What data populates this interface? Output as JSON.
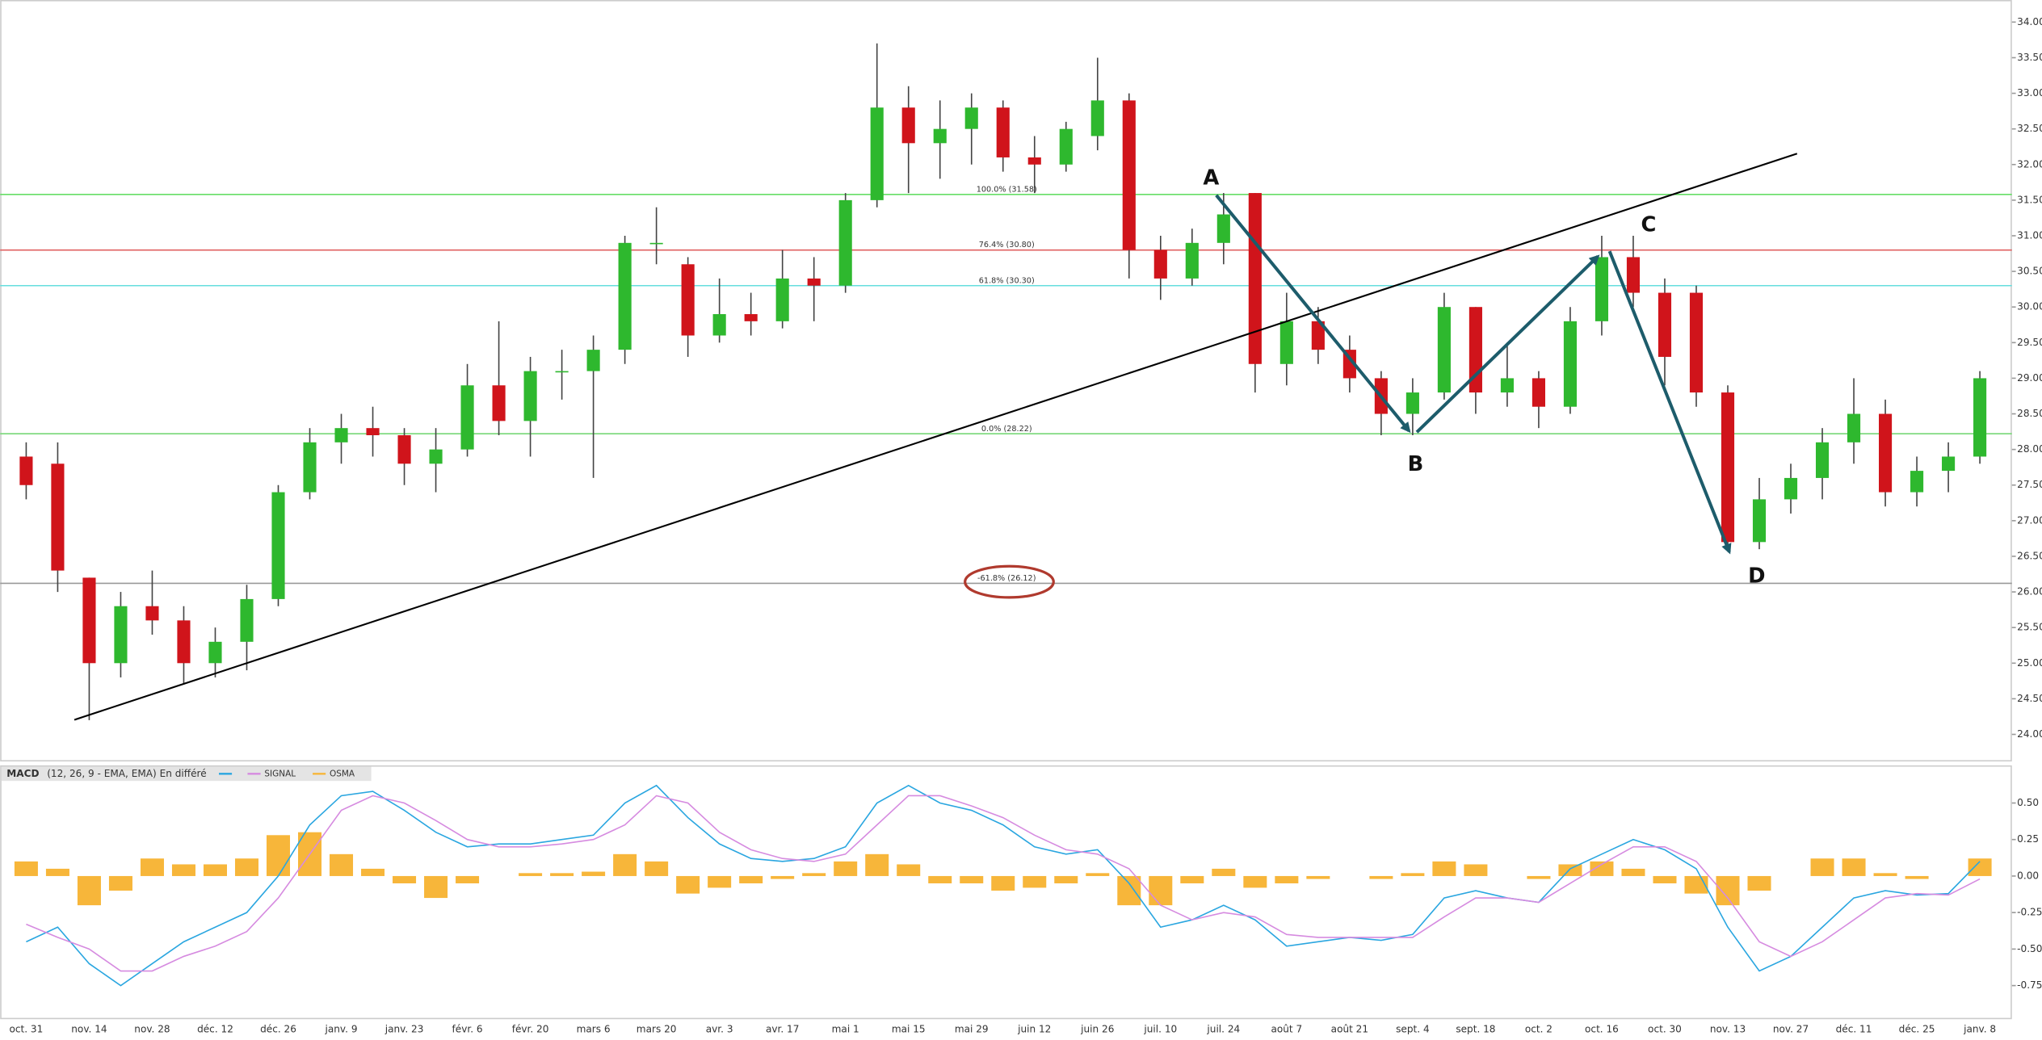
{
  "chart_data": [
    {
      "type": "candlestick",
      "categories": [
        "oct. 31",
        null,
        "nov. 14",
        null,
        "nov. 28",
        null,
        "déc. 12",
        null,
        "déc. 26",
        null,
        "janv. 9",
        null,
        "janv. 23",
        null,
        "févr. 6",
        null,
        "févr. 20",
        null,
        "mars 6",
        null,
        "mars 20",
        null,
        "avr. 3",
        null,
        "avr. 17",
        null,
        "mai 1",
        null,
        "mai 15",
        null,
        "mai 29",
        null,
        "juin 12",
        null,
        "juin 26",
        null,
        "juil. 10",
        null,
        "juil. 24",
        null,
        "août 7",
        null,
        "août 21",
        null,
        "sept. 4",
        null,
        "sept. 18",
        null,
        "oct. 2",
        null,
        "oct. 16",
        null,
        "oct. 30",
        null,
        "nov. 13",
        null,
        "nov. 27",
        null,
        "déc. 11",
        null,
        "déc. 25",
        null,
        "janv. 8"
      ],
      "open": [
        27.9,
        27.8,
        26.2,
        25.0,
        25.8,
        25.6,
        25.0,
        25.3,
        25.9,
        27.4,
        28.1,
        28.3,
        28.2,
        27.8,
        28.0,
        28.9,
        28.4,
        29.1,
        29.1,
        29.4,
        30.9,
        30.6,
        29.6,
        29.9,
        29.8,
        30.4,
        30.3,
        31.5,
        32.8,
        32.3,
        32.5,
        32.8,
        32.1,
        32.0,
        32.4,
        32.9,
        30.8,
        30.4,
        30.9,
        31.6,
        29.2,
        29.8,
        29.4,
        29.0,
        28.5,
        28.8,
        30.0,
        28.8,
        29.0,
        28.6,
        29.8,
        30.7,
        30.2,
        30.2,
        28.8,
        26.7,
        27.3,
        27.6,
        28.1,
        28.5,
        27.4,
        27.7,
        27.9
      ],
      "high": [
        28.1,
        28.1,
        26.2,
        26.0,
        26.3,
        25.8,
        25.5,
        26.1,
        27.5,
        28.3,
        28.5,
        28.6,
        28.3,
        28.3,
        29.2,
        29.8,
        29.3,
        29.4,
        29.6,
        31.0,
        31.4,
        30.7,
        30.4,
        30.2,
        30.8,
        30.7,
        31.6,
        33.7,
        33.1,
        32.9,
        33.0,
        32.9,
        32.4,
        32.6,
        33.5,
        33.0,
        31.0,
        31.1,
        31.6,
        31.6,
        30.2,
        30.0,
        29.6,
        29.1,
        29.0,
        30.2,
        30.0,
        29.5,
        29.1,
        30.0,
        31.0,
        31.0,
        30.4,
        30.3,
        28.9,
        27.6,
        27.8,
        28.3,
        29.0,
        28.7,
        27.9,
        28.1,
        29.1
      ],
      "low": [
        27.3,
        26.0,
        24.2,
        24.8,
        25.4,
        24.7,
        24.8,
        24.9,
        25.8,
        27.3,
        27.8,
        27.9,
        27.5,
        27.4,
        27.9,
        28.2,
        27.9,
        28.7,
        27.6,
        29.2,
        30.6,
        29.3,
        29.5,
        29.6,
        29.7,
        29.8,
        30.2,
        31.4,
        31.6,
        31.8,
        32.0,
        31.9,
        31.6,
        31.9,
        32.2,
        30.4,
        30.1,
        30.3,
        30.6,
        28.8,
        28.9,
        29.2,
        28.8,
        28.2,
        28.2,
        28.7,
        28.5,
        28.6,
        28.3,
        28.5,
        29.6,
        30.0,
        28.9,
        28.6,
        26.6,
        26.6,
        27.1,
        27.3,
        27.8,
        27.2,
        27.2,
        27.4,
        27.8
      ],
      "close": [
        27.5,
        26.3,
        25.0,
        25.8,
        25.6,
        25.0,
        25.3,
        25.9,
        27.4,
        28.1,
        28.3,
        28.2,
        27.8,
        28.0,
        28.9,
        28.4,
        29.1,
        29.1,
        29.4,
        30.9,
        30.9,
        29.6,
        29.9,
        29.8,
        30.4,
        30.3,
        31.5,
        32.8,
        32.3,
        32.5,
        32.8,
        32.1,
        32.0,
        32.5,
        32.9,
        30.8,
        30.4,
        30.9,
        31.3,
        29.2,
        29.8,
        29.4,
        29.0,
        28.5,
        28.8,
        30.0,
        28.8,
        29.0,
        28.6,
        29.8,
        30.7,
        30.2,
        29.3,
        28.8,
        26.7,
        27.3,
        27.6,
        28.1,
        28.5,
        27.4,
        27.7,
        27.9,
        29.0
      ],
      "up_color": "#2eb82e",
      "down_color": "#d0141b",
      "ylim": [
        23.62,
        34.31
      ],
      "yticks": [
        {
          "value": 24,
          "label": "24.00"
        },
        {
          "value": 24.5,
          "label": "24.50"
        },
        {
          "value": 25,
          "label": "25.00"
        },
        {
          "value": 25.5,
          "label": "25.50"
        },
        {
          "value": 26,
          "label": "26.00"
        },
        {
          "value": 26.5,
          "label": "26.50"
        },
        {
          "value": 27,
          "label": "27.00"
        },
        {
          "value": 27.5,
          "label": "27.50"
        },
        {
          "value": 28,
          "label": "28.00"
        },
        {
          "value": 28.5,
          "label": "28.50"
        },
        {
          "value": 29,
          "label": "29.00"
        },
        {
          "value": 29.5,
          "label": "29.50"
        },
        {
          "value": 30,
          "label": "30.00"
        },
        {
          "value": 30.5,
          "label": "30.50"
        },
        {
          "value": 31,
          "label": "31.00"
        },
        {
          "value": 31.5,
          "label": "31.50"
        },
        {
          "value": 32,
          "label": "32.00"
        },
        {
          "value": 32.5,
          "label": "32.50"
        },
        {
          "value": 33,
          "label": "33.00"
        },
        {
          "value": 33.5,
          "label": "33.50"
        },
        {
          "value": 34,
          "label": "34.00"
        }
      ],
      "levels": [
        {
          "label": "100.0% (31.58)",
          "value": 31.58,
          "color": "#66dd66"
        },
        {
          "label": "76.4% (30.80)",
          "value": 30.8,
          "color": "#e06060"
        },
        {
          "label": "61.8% (30.30)",
          "value": 30.3,
          "color": "#66dede"
        },
        {
          "label": "0.0% (28.22)",
          "value": 28.22,
          "color": "#77d877"
        },
        {
          "label": "-61.8% (26.12)",
          "value": 26.12,
          "color": "#999999"
        }
      ],
      "annotations": [
        "A",
        "B",
        "C",
        "D"
      ]
    },
    {
      "type": "macd",
      "title": "MACD",
      "subtitle": "(12, 26, 9 - EMA, EMA) En différé",
      "series": [
        {
          "color": "#2aa6e0",
          "values": [
            -0.45,
            -0.35,
            -0.6,
            -0.75,
            -0.6,
            -0.45,
            -0.35,
            -0.25,
            0.0,
            0.35,
            0.55,
            0.58,
            0.45,
            0.3,
            0.2,
            0.22,
            0.22,
            0.25,
            0.28,
            0.5,
            0.62,
            0.4,
            0.22,
            0.12,
            0.1,
            0.12,
            0.2,
            0.5,
            0.62,
            0.5,
            0.45,
            0.35,
            0.2,
            0.15,
            0.18,
            -0.05,
            -0.35,
            -0.3,
            -0.2,
            -0.3,
            -0.48,
            -0.45,
            -0.42,
            -0.44,
            -0.4,
            -0.15,
            -0.1,
            -0.15,
            -0.18,
            0.05,
            0.15,
            0.25,
            0.18,
            0.05,
            -0.35,
            -0.65,
            -0.55,
            -0.35,
            -0.15,
            -0.1,
            -0.13,
            -0.12,
            0.1
          ]
        },
        {
          "name": "SIGNAL",
          "color": "#d68be0",
          "values": [
            -0.33,
            -0.42,
            -0.5,
            -0.65,
            -0.65,
            -0.55,
            -0.48,
            -0.38,
            -0.15,
            0.15,
            0.45,
            0.55,
            0.5,
            0.38,
            0.25,
            0.2,
            0.2,
            0.22,
            0.25,
            0.35,
            0.55,
            0.5,
            0.3,
            0.18,
            0.12,
            0.1,
            0.15,
            0.35,
            0.55,
            0.55,
            0.48,
            0.4,
            0.28,
            0.18,
            0.15,
            0.05,
            -0.2,
            -0.3,
            -0.25,
            -0.28,
            -0.4,
            -0.42,
            -0.42,
            -0.42,
            -0.42,
            -0.28,
            -0.15,
            -0.15,
            -0.18,
            -0.05,
            0.08,
            0.2,
            0.2,
            0.1,
            -0.15,
            -0.45,
            -0.55,
            -0.45,
            -0.3,
            -0.15,
            -0.12,
            -0.13,
            -0.02
          ]
        },
        {
          "name": "OSMA",
          "color": "#f7b63a",
          "values": [
            0.1,
            0.05,
            -0.2,
            -0.1,
            0.12,
            0.08,
            0.08,
            0.12,
            0.28,
            0.3,
            0.15,
            0.05,
            -0.05,
            -0.15,
            -0.05,
            0.0,
            0.02,
            0.02,
            0.03,
            0.15,
            0.1,
            -0.12,
            -0.08,
            -0.05,
            -0.02,
            0.02,
            0.1,
            0.15,
            0.08,
            -0.05,
            -0.05,
            -0.1,
            -0.08,
            -0.05,
            0.02,
            -0.2,
            -0.2,
            -0.05,
            0.05,
            -0.08,
            -0.05,
            -0.02,
            0.0,
            -0.02,
            0.02,
            0.1,
            0.08,
            0.0,
            -0.02,
            0.08,
            0.1,
            0.05,
            -0.05,
            -0.12,
            -0.2,
            -0.1,
            0.0,
            0.12,
            0.12,
            0.02,
            -0.02,
            0.0,
            0.12
          ]
        }
      ],
      "ylim": [
        -0.98,
        0.74
      ],
      "yticks": [
        {
          "value": 0.5,
          "label": "0.50"
        },
        {
          "value": 0.25,
          "label": "0.25"
        },
        {
          "value": 0,
          "label": "0.00"
        },
        {
          "value": -0.25,
          "label": "-0.25"
        },
        {
          "value": -0.5,
          "label": "-0.50"
        },
        {
          "value": -0.75,
          "label": "-0.75"
        }
      ]
    }
  ]
}
